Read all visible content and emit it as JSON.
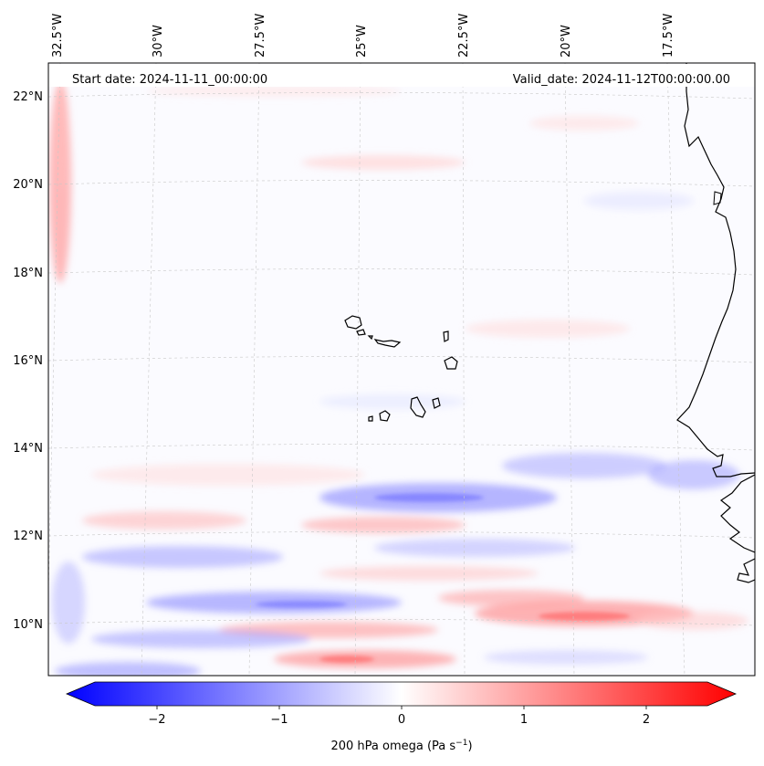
{
  "map": {
    "header_left": "Start date: 2024-11-11_00:00:00",
    "header_right": "Valid_date: 2024-11-12T00:00:00.00",
    "lon_labels": [
      "32.5°W",
      "30°W",
      "27.5°W",
      "25°W",
      "22.5°W",
      "20°W",
      "17.5°W"
    ],
    "lat_labels": [
      "22°N",
      "20°N",
      "18°N",
      "16°N",
      "14°N",
      "12°N",
      "10°N"
    ],
    "gridlines": true,
    "gridline_style": "dashed light gray",
    "features": [
      "Cape Verde islands",
      "West African coastline"
    ]
  },
  "colorbar": {
    "label": "200 hPa omega (Pa s",
    "label_exponent": "−1",
    "label_suffix": ")",
    "ticks": [
      "−2",
      "−1",
      "0",
      "1",
      "2"
    ],
    "tick_values": [
      -2,
      -1,
      0,
      1,
      2
    ],
    "range": [
      -2.6,
      2.6
    ],
    "extend": "both",
    "colormap": "bwr",
    "color_min": "#0000ff",
    "color_mid": "#ffffff",
    "color_max": "#ff0000"
  }
}
